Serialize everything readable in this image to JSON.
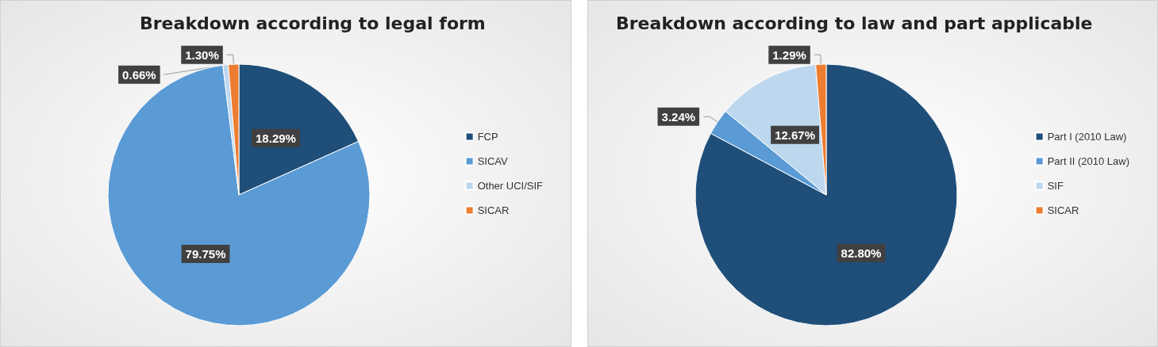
{
  "chart_data": [
    {
      "type": "pie",
      "title": "Breakdown according to legal form",
      "categories": [
        "FCP",
        "SICAV",
        "Other UCI/SIF",
        "SICAR"
      ],
      "values": [
        18.29,
        79.75,
        0.66,
        1.3
      ],
      "colors": [
        "#1f4e79",
        "#5b9bd5",
        "#bdd7ee",
        "#ed7d31"
      ],
      "value_labels": [
        "18.29%",
        "79.75%",
        "0.66%",
        "1.30%"
      ],
      "legend": "right"
    },
    {
      "type": "pie",
      "title": "Breakdown according to law and part applicable",
      "categories": [
        "Part I (2010 Law)",
        "Part II (2010 Law)",
        "SIF",
        "SICAR"
      ],
      "values": [
        82.8,
        3.24,
        12.67,
        1.29
      ],
      "colors": [
        "#1f4e79",
        "#5b9bd5",
        "#bdd7ee",
        "#ed7d31"
      ],
      "value_labels": [
        "82.80%",
        "3.24%",
        "12.67%",
        "1.29%"
      ],
      "legend": "right"
    }
  ]
}
